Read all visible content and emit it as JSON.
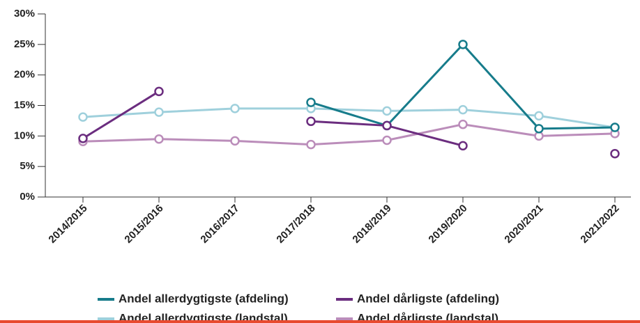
{
  "chart_data": {
    "type": "line",
    "categories": [
      "2014/2015",
      "2015/2016",
      "2016/2017",
      "2017/2018",
      "2018/2019",
      "2019/2020",
      "2020/2021",
      "2021/2022"
    ],
    "series": [
      {
        "name": "Andel allerdygtigste (afdeling)",
        "color": "#177c8b",
        "values": [
          null,
          null,
          null,
          15.5,
          11.7,
          25,
          11.2,
          11.4
        ]
      },
      {
        "name": "Andel dårligste (afdeling)",
        "color": "#6b2d7f",
        "values": [
          9.6,
          17.3,
          null,
          12.4,
          11.7,
          8.4,
          null,
          7.1
        ]
      },
      {
        "name": "Andel allerdygtigste (landstal)",
        "color": "#9fd0dc",
        "values": [
          13.1,
          13.9,
          14.5,
          14.5,
          14.1,
          14.3,
          13.3,
          11.4
        ]
      },
      {
        "name": "Andel dårligste (landstal)",
        "color": "#bb8dba",
        "values": [
          9.1,
          9.5,
          9.2,
          8.6,
          9.3,
          11.9,
          10.0,
          10.4
        ]
      }
    ],
    "ylim": [
      0,
      30
    ],
    "yticks": [
      {
        "value": 0,
        "label": "0%"
      },
      {
        "value": 5,
        "label": "5%"
      },
      {
        "value": 10,
        "label": "10%"
      },
      {
        "value": 15,
        "label": "15%"
      },
      {
        "value": 20,
        "label": "20%"
      },
      {
        "value": 25,
        "label": "25%"
      },
      {
        "value": 30,
        "label": "30%"
      }
    ]
  }
}
